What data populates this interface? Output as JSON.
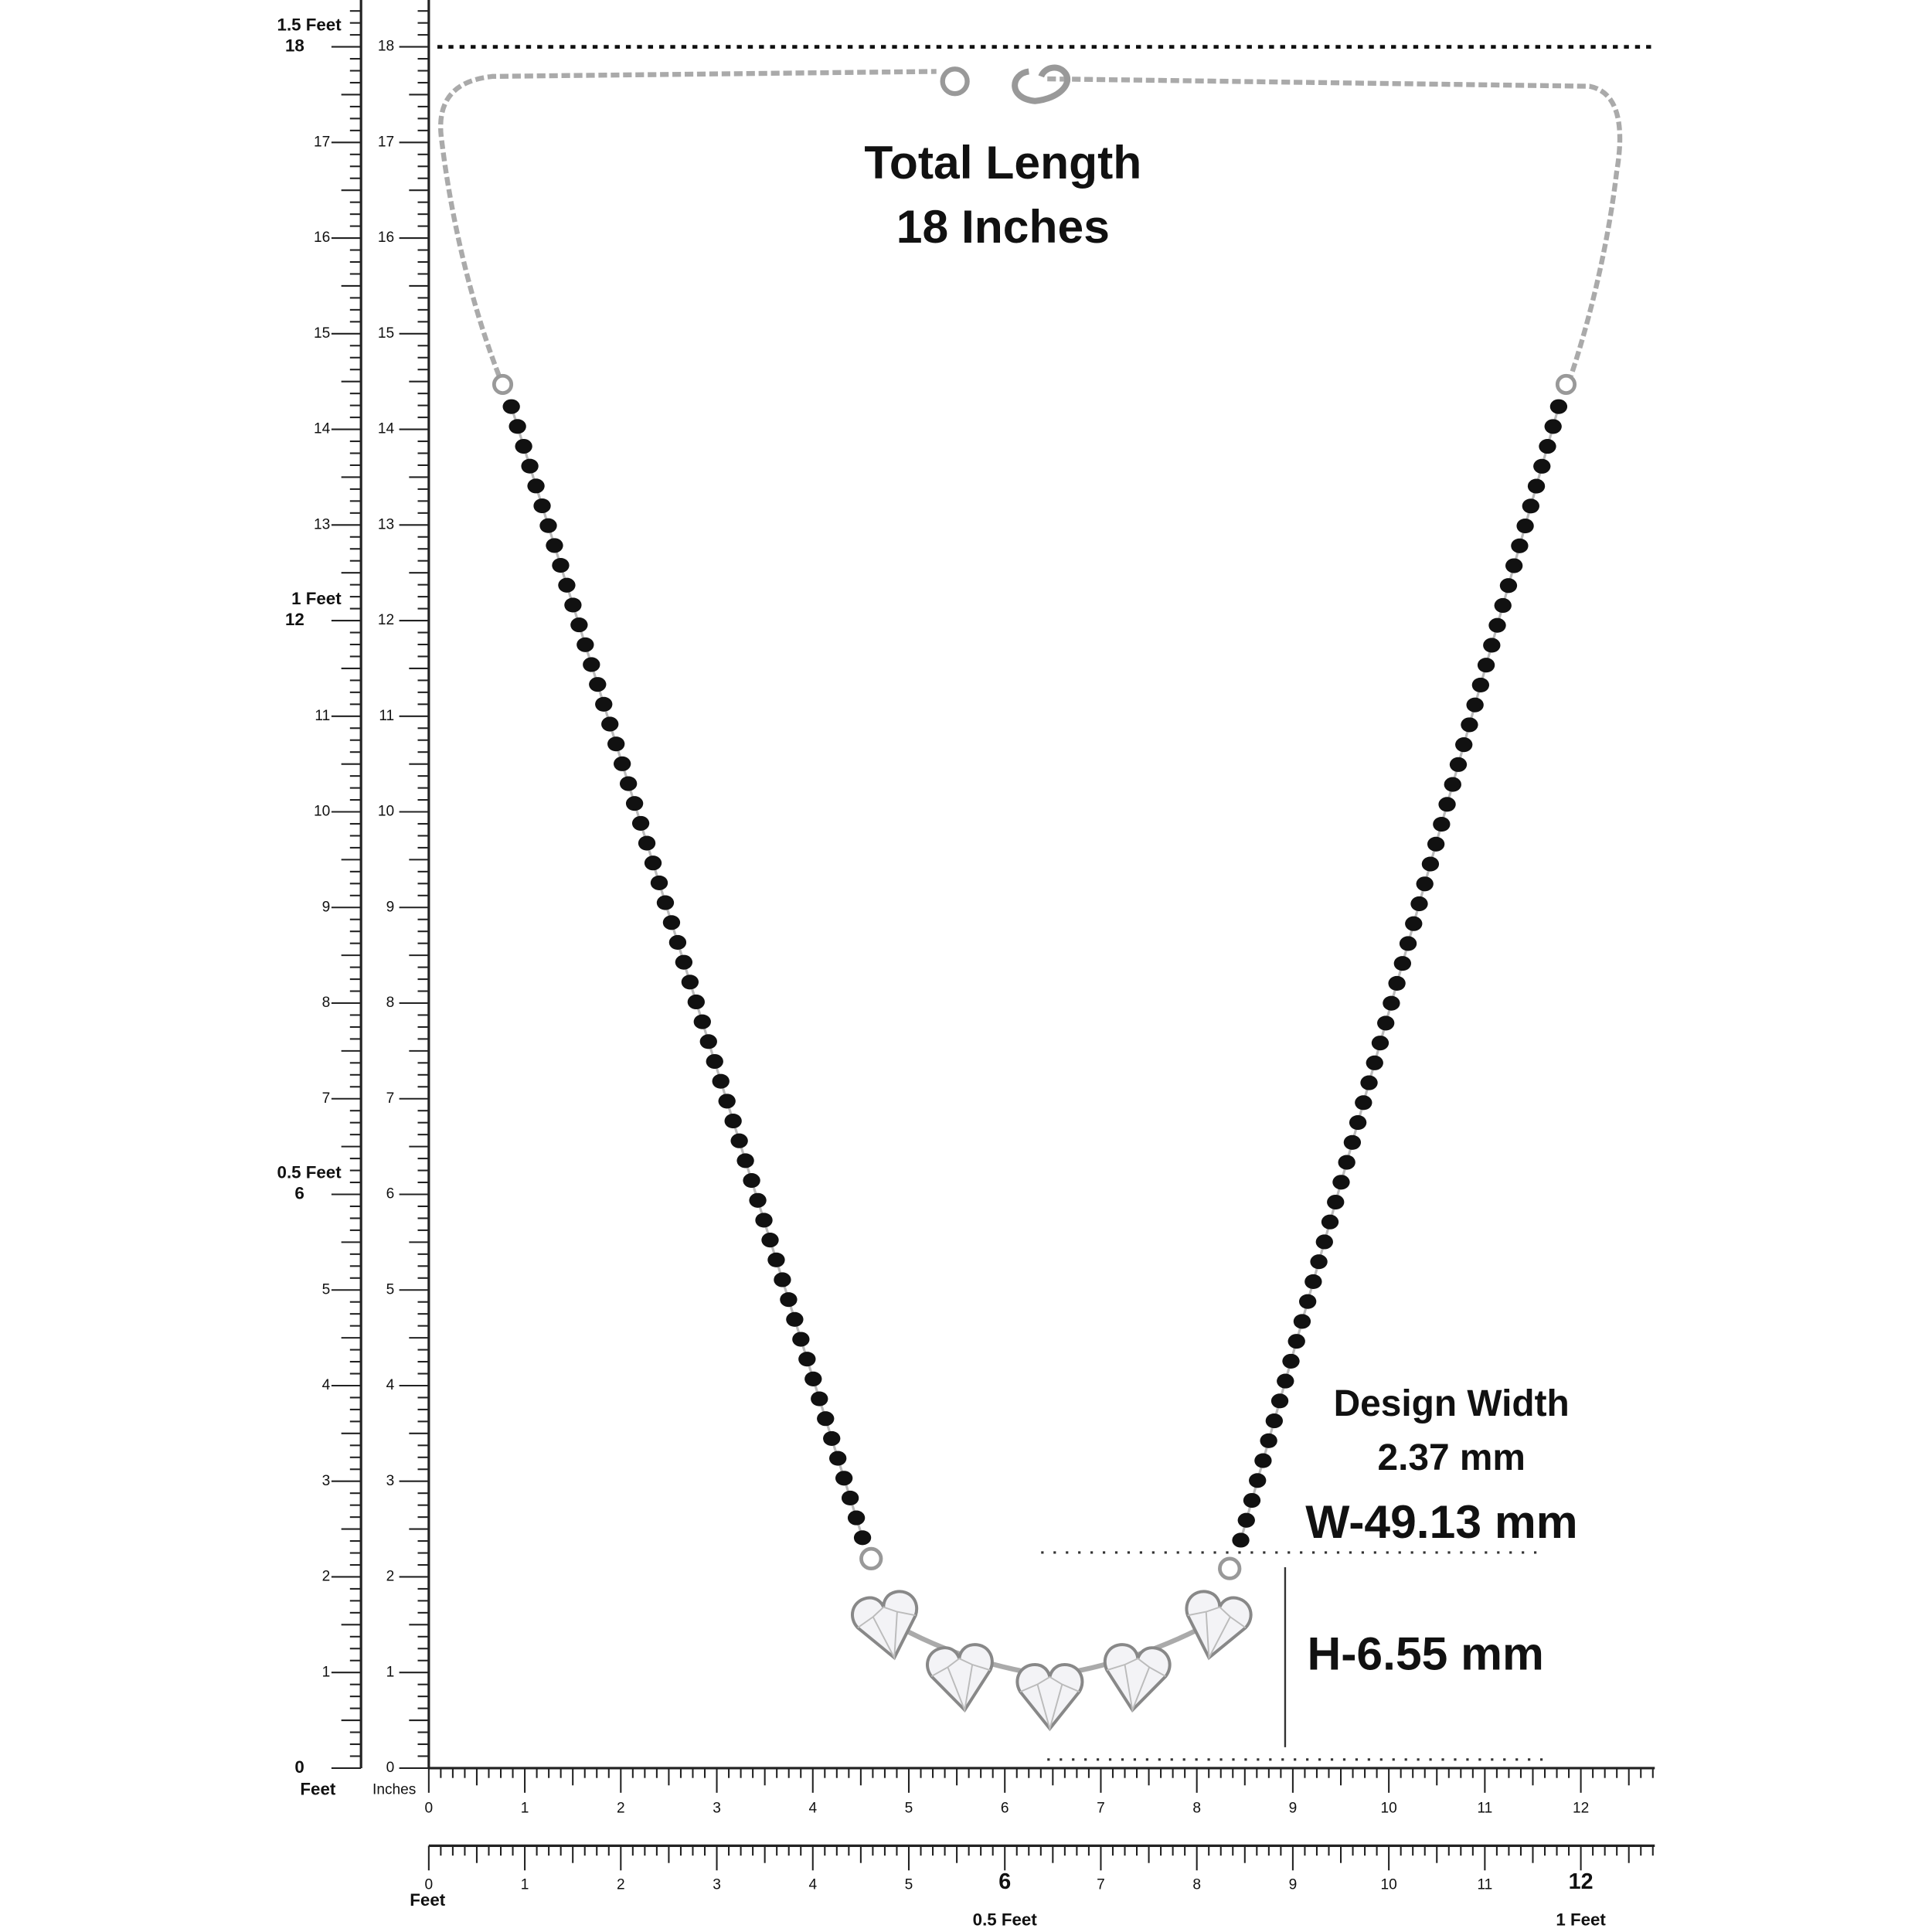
{
  "headline": {
    "line1": "Total Length",
    "line2": "18 Inches"
  },
  "design_width": {
    "label": "Design Width",
    "value": "2.37 mm"
  },
  "width": "W-49.13 mm",
  "height": "H-6.55 mm",
  "vertical_ruler": {
    "unit_outer": "Feet",
    "unit_inner": "Inches",
    "marks": [
      0,
      1,
      2,
      3,
      4,
      5,
      6,
      7,
      8,
      9,
      10,
      11,
      12,
      13,
      14,
      15,
      16,
      17,
      18
    ],
    "feet_marks": [
      {
        "at": 6,
        "label": "0.5 Feet"
      },
      {
        "at": 12,
        "label": "1 Feet"
      },
      {
        "at": 18,
        "label": "1.5 Feet"
      }
    ]
  },
  "horizontal_ruler": {
    "unit": "Feet",
    "marks": [
      0,
      1,
      2,
      3,
      4,
      5,
      6,
      7,
      8,
      9,
      10,
      11,
      12
    ],
    "feet_marks": [
      {
        "at": 6,
        "label": "0.5 Feet"
      },
      {
        "at": 12,
        "label": "1 Feet"
      }
    ]
  }
}
